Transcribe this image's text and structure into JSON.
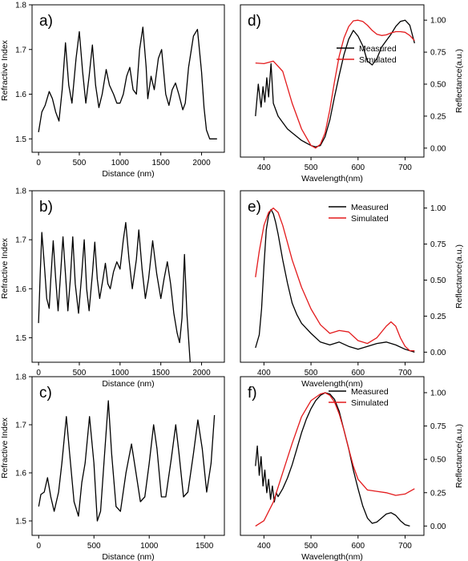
{
  "chart_data": [
    {
      "type": "line",
      "panel_label": "a)",
      "xlabel": "Distance (nm)",
      "ylabel": "Refractive Index",
      "xlim": [
        -80,
        2280
      ],
      "ylim": [
        1.47,
        1.8
      ],
      "xticks": [
        0,
        500,
        1000,
        1500,
        2000
      ],
      "yticks": [
        1.5,
        1.6,
        1.7,
        1.8
      ],
      "series": [
        {
          "color": "#000000",
          "x": [
            0,
            40,
            80,
            130,
            170,
            210,
            250,
            290,
            330,
            370,
            410,
            460,
            500,
            540,
            580,
            620,
            660,
            700,
            740,
            780,
            830,
            870,
            920,
            960,
            1000,
            1040,
            1080,
            1120,
            1160,
            1200,
            1240,
            1280,
            1320,
            1340,
            1380,
            1420,
            1470,
            1510,
            1560,
            1600,
            1640,
            1680,
            1720,
            1770,
            1800,
            1840,
            1900,
            1950,
            2000,
            2030,
            2060,
            2100,
            2140,
            2190
          ],
          "y": [
            1.515,
            1.56,
            1.575,
            1.606,
            1.59,
            1.56,
            1.54,
            1.61,
            1.715,
            1.62,
            1.58,
            1.68,
            1.74,
            1.65,
            1.58,
            1.64,
            1.71,
            1.62,
            1.57,
            1.6,
            1.655,
            1.62,
            1.6,
            1.58,
            1.58,
            1.6,
            1.64,
            1.66,
            1.61,
            1.6,
            1.7,
            1.75,
            1.66,
            1.59,
            1.64,
            1.61,
            1.68,
            1.7,
            1.6,
            1.575,
            1.61,
            1.625,
            1.6,
            1.565,
            1.58,
            1.66,
            1.73,
            1.745,
            1.65,
            1.57,
            1.52,
            1.5,
            1.5,
            1.5
          ]
        }
      ]
    },
    {
      "type": "line",
      "panel_label": "b)",
      "xlabel": "Distance (nm)",
      "ylabel": "Refractive Index",
      "xlim": [
        -80,
        2280
      ],
      "ylim": [
        1.45,
        1.8
      ],
      "xticks": [
        0,
        500,
        1000,
        1500,
        2000
      ],
      "yticks": [
        1.5,
        1.6,
        1.7,
        1.8
      ],
      "series": [
        {
          "color": "#000000",
          "x": [
            0,
            20,
            40,
            70,
            100,
            130,
            150,
            180,
            210,
            240,
            270,
            300,
            330,
            360,
            390,
            420,
            450,
            490,
            530,
            560,
            590,
            620,
            660,
            690,
            720,
            750,
            790,
            820,
            850,
            880,
            920,
            960,
            1000,
            1040,
            1070,
            1110,
            1150,
            1200,
            1230,
            1270,
            1310,
            1350,
            1400,
            1450,
            1500,
            1540,
            1580,
            1620,
            1660,
            1700,
            1730,
            1760,
            1790,
            1820,
            1860
          ],
          "y": [
            1.53,
            1.63,
            1.715,
            1.65,
            1.58,
            1.56,
            1.62,
            1.698,
            1.62,
            1.555,
            1.63,
            1.706,
            1.63,
            1.555,
            1.62,
            1.706,
            1.61,
            1.55,
            1.63,
            1.7,
            1.6,
            1.555,
            1.63,
            1.695,
            1.62,
            1.58,
            1.62,
            1.652,
            1.61,
            1.6,
            1.635,
            1.655,
            1.64,
            1.7,
            1.735,
            1.66,
            1.6,
            1.66,
            1.72,
            1.64,
            1.58,
            1.62,
            1.698,
            1.63,
            1.58,
            1.62,
            1.655,
            1.61,
            1.55,
            1.51,
            1.49,
            1.54,
            1.67,
            1.55,
            1.45
          ]
        }
      ]
    },
    {
      "type": "line",
      "panel_label": "c)",
      "xlabel": "Distance (nm)",
      "ylabel": "Refractive Index",
      "xlim": [
        -60,
        1680
      ],
      "ylim": [
        1.47,
        1.8
      ],
      "xticks": [
        0,
        500,
        1000,
        1500
      ],
      "yticks": [
        1.5,
        1.6,
        1.7,
        1.8
      ],
      "series": [
        {
          "color": "#000000",
          "x": [
            0,
            20,
            50,
            80,
            110,
            140,
            180,
            210,
            250,
            280,
            320,
            360,
            390,
            420,
            460,
            500,
            530,
            560,
            590,
            630,
            660,
            700,
            740,
            790,
            840,
            880,
            920,
            960,
            1000,
            1040,
            1070,
            1110,
            1150,
            1200,
            1240,
            1270,
            1310,
            1350,
            1400,
            1440,
            1480,
            1520,
            1560,
            1590
          ],
          "y": [
            1.53,
            1.555,
            1.56,
            1.59,
            1.55,
            1.52,
            1.56,
            1.62,
            1.717,
            1.64,
            1.54,
            1.51,
            1.58,
            1.62,
            1.717,
            1.62,
            1.5,
            1.52,
            1.62,
            1.75,
            1.64,
            1.53,
            1.52,
            1.6,
            1.66,
            1.6,
            1.54,
            1.55,
            1.62,
            1.7,
            1.65,
            1.55,
            1.55,
            1.63,
            1.7,
            1.64,
            1.55,
            1.56,
            1.64,
            1.71,
            1.65,
            1.56,
            1.62,
            1.72
          ]
        }
      ]
    },
    {
      "type": "line",
      "panel_label": "d)",
      "xlabel": "Wavelength(nm)",
      "ylabel": "Reflectance(a.u.)",
      "xlim": [
        350,
        740
      ],
      "ylim": [
        -0.07,
        1.12
      ],
      "xticks": [
        400,
        500,
        600,
        700
      ],
      "yticks": [
        0.0,
        0.25,
        0.5,
        0.75,
        1.0
      ],
      "legend": {
        "position": "middle-right",
        "entries": [
          "Measured",
          "Simulated"
        ]
      },
      "series": [
        {
          "name": "Measured",
          "color": "#000000",
          "x": [
            382,
            388,
            394,
            398,
            402,
            406,
            410,
            415,
            420,
            430,
            440,
            450,
            460,
            470,
            480,
            490,
            500,
            510,
            520,
            530,
            540,
            550,
            560,
            570,
            580,
            590,
            600,
            610,
            620,
            630,
            640,
            650,
            660,
            670,
            680,
            690,
            700,
            710,
            720
          ],
          "y": [
            0.25,
            0.5,
            0.32,
            0.48,
            0.36,
            0.55,
            0.4,
            0.66,
            0.35,
            0.25,
            0.2,
            0.15,
            0.12,
            0.09,
            0.06,
            0.04,
            0.02,
            0.01,
            0.02,
            0.09,
            0.22,
            0.4,
            0.57,
            0.73,
            0.85,
            0.92,
            0.875,
            0.8,
            0.68,
            0.65,
            0.7,
            0.79,
            0.84,
            0.89,
            0.95,
            0.99,
            1.0,
            0.96,
            0.82
          ]
        },
        {
          "name": "Simulated",
          "color": "#e31a1c",
          "x": [
            382,
            400,
            420,
            440,
            460,
            480,
            500,
            510,
            520,
            530,
            540,
            550,
            560,
            570,
            580,
            590,
            600,
            610,
            620,
            630,
            640,
            650,
            660,
            670,
            680,
            690,
            700,
            710,
            720
          ],
          "y": [
            0.665,
            0.66,
            0.68,
            0.6,
            0.35,
            0.15,
            0.02,
            0.0,
            0.03,
            0.12,
            0.3,
            0.52,
            0.72,
            0.86,
            0.95,
            0.995,
            1.0,
            0.99,
            0.96,
            0.92,
            0.89,
            0.88,
            0.885,
            0.9,
            0.91,
            0.91,
            0.905,
            0.88,
            0.84
          ]
        }
      ]
    },
    {
      "type": "line",
      "panel_label": "e)",
      "xlabel": "Wavelength(nm)",
      "ylabel": "Reflectance(a.u.)",
      "xlim": [
        350,
        740
      ],
      "ylim": [
        -0.07,
        1.12
      ],
      "xticks": [
        400,
        500,
        600,
        700
      ],
      "yticks": [
        0.0,
        0.25,
        0.5,
        0.75,
        1.0
      ],
      "legend": {
        "position": "top-right",
        "entries": [
          "Measured",
          "Simulated"
        ]
      },
      "series": [
        {
          "name": "Measured",
          "color": "#000000",
          "x": [
            382,
            390,
            395,
            400,
            405,
            410,
            415,
            420,
            425,
            430,
            440,
            450,
            460,
            470,
            480,
            500,
            520,
            540,
            560,
            580,
            600,
            620,
            640,
            660,
            680,
            700,
            720
          ],
          "y": [
            0.03,
            0.12,
            0.3,
            0.6,
            0.85,
            0.95,
            0.99,
            0.96,
            0.9,
            0.82,
            0.64,
            0.48,
            0.34,
            0.26,
            0.2,
            0.13,
            0.07,
            0.05,
            0.07,
            0.04,
            0.02,
            0.04,
            0.06,
            0.07,
            0.05,
            0.02,
            0.0
          ]
        },
        {
          "name": "Simulated",
          "color": "#e31a1c",
          "x": [
            382,
            390,
            400,
            410,
            420,
            430,
            440,
            450,
            460,
            480,
            500,
            520,
            540,
            560,
            580,
            600,
            620,
            640,
            660,
            670,
            680,
            690,
            700,
            710,
            720
          ],
          "y": [
            0.52,
            0.7,
            0.88,
            0.97,
            1.0,
            0.97,
            0.88,
            0.76,
            0.64,
            0.45,
            0.3,
            0.19,
            0.13,
            0.15,
            0.14,
            0.08,
            0.06,
            0.1,
            0.18,
            0.21,
            0.18,
            0.1,
            0.04,
            0.01,
            0.01
          ]
        }
      ]
    },
    {
      "type": "line",
      "panel_label": "f)",
      "xlabel": "Wavelength(nm)",
      "ylabel": "Reflectance(a.u.)",
      "xlim": [
        350,
        740
      ],
      "ylim": [
        -0.07,
        1.12
      ],
      "xticks": [
        400,
        500,
        600,
        700
      ],
      "yticks": [
        0.0,
        0.25,
        0.5,
        0.75,
        1.0
      ],
      "legend": {
        "position": "top-right",
        "entries": [
          "Measured",
          "Simulated"
        ]
      },
      "series": [
        {
          "name": "Measured",
          "color": "#000000",
          "x": [
            382,
            386,
            390,
            394,
            398,
            402,
            406,
            410,
            414,
            418,
            422,
            426,
            430,
            440,
            450,
            460,
            470,
            480,
            490,
            500,
            510,
            520,
            530,
            540,
            550,
            560,
            570,
            580,
            590,
            600,
            610,
            620,
            630,
            640,
            650,
            660,
            670,
            680,
            690,
            700,
            710
          ],
          "y": [
            0.45,
            0.6,
            0.38,
            0.52,
            0.3,
            0.42,
            0.25,
            0.35,
            0.2,
            0.3,
            0.18,
            0.25,
            0.22,
            0.28,
            0.36,
            0.46,
            0.58,
            0.7,
            0.8,
            0.88,
            0.94,
            0.98,
            1.0,
            0.99,
            0.95,
            0.86,
            0.72,
            0.58,
            0.42,
            0.28,
            0.15,
            0.06,
            0.02,
            0.03,
            0.06,
            0.09,
            0.1,
            0.08,
            0.04,
            0.01,
            0.0
          ]
        },
        {
          "name": "Simulated",
          "color": "#e31a1c",
          "x": [
            382,
            400,
            420,
            440,
            460,
            480,
            500,
            520,
            530,
            540,
            550,
            560,
            570,
            580,
            590,
            600,
            620,
            640,
            660,
            680,
            700,
            720
          ],
          "y": [
            0.0,
            0.04,
            0.18,
            0.4,
            0.62,
            0.82,
            0.94,
            0.99,
            1.0,
            0.98,
            0.93,
            0.84,
            0.72,
            0.58,
            0.45,
            0.35,
            0.27,
            0.26,
            0.25,
            0.23,
            0.24,
            0.28
          ]
        }
      ]
    }
  ]
}
